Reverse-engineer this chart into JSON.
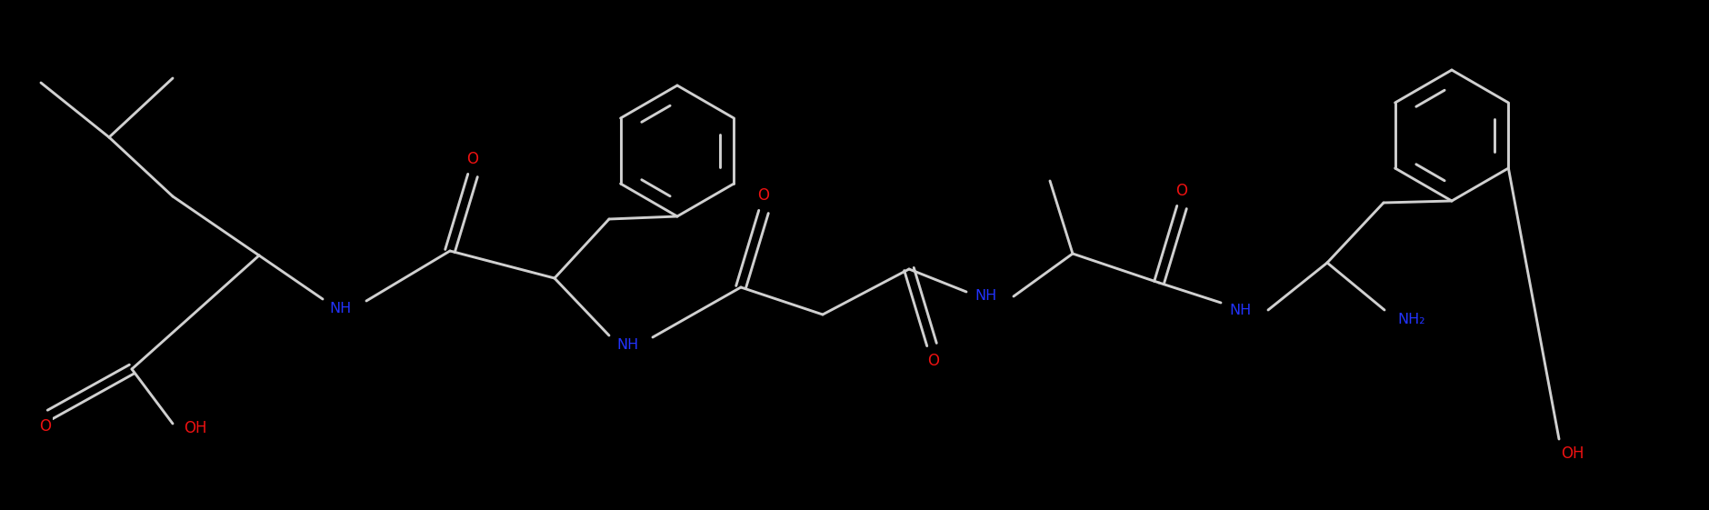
{
  "bg_color": "#000000",
  "bond_color": "#d0d0d0",
  "nitrogen_color": "#2233ff",
  "oxygen_color": "#ee1111",
  "figsize": [
    18.81,
    5.61
  ],
  "dpi": 100,
  "lw": 2.1,
  "font_size": 11.5,
  "ring_r": 0.72,
  "xlim": [
    0,
    18.81
  ],
  "ylim": [
    0,
    5.61
  ]
}
